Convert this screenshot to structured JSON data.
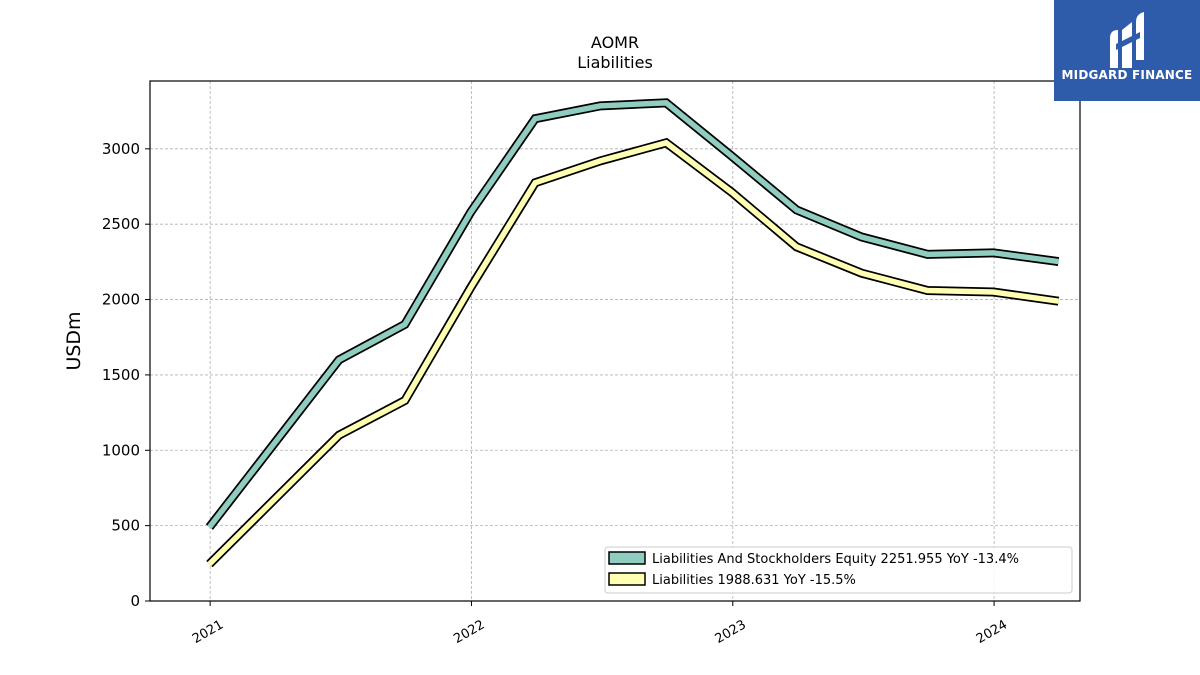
{
  "logo": {
    "text": "MIDGARD FINANCE"
  },
  "chart_data": {
    "type": "line",
    "title": [
      "AOMR",
      "Liabilities"
    ],
    "xlabel": "",
    "ylabel": "USDm",
    "ylim": [
      0,
      3450
    ],
    "yticks": [
      0,
      500,
      1000,
      1500,
      2000,
      2500,
      3000
    ],
    "xticks": [
      "2021",
      "2022",
      "2023",
      "2024"
    ],
    "grid": true,
    "legend_position": "lower-right",
    "x": [
      "2020-12-31",
      "2021-06-30",
      "2021-09-30",
      "2021-12-31",
      "2022-03-31",
      "2022-06-30",
      "2022-09-30",
      "2022-12-31",
      "2023-03-31",
      "2023-06-30",
      "2023-09-30",
      "2023-12-31",
      "2024-03-31"
    ],
    "series": [
      {
        "name": "Liabilities And Stockholders Equity",
        "legend": "Liabilities And Stockholders Equity  2251.955 YoY -13.4%",
        "color": "#8ecdc0",
        "values": [
          490,
          1600,
          1835,
          2580,
          3200,
          3285,
          3305,
          2950,
          2595,
          2415,
          2300,
          2310,
          2252
        ]
      },
      {
        "name": "Liabilities",
        "legend": "Liabilities  1988.631 YoY -15.5%",
        "color": "#ffffb3",
        "values": [
          245,
          1100,
          1330,
          2080,
          2775,
          2920,
          3040,
          2710,
          2350,
          2175,
          2060,
          2050,
          1989
        ]
      }
    ]
  }
}
